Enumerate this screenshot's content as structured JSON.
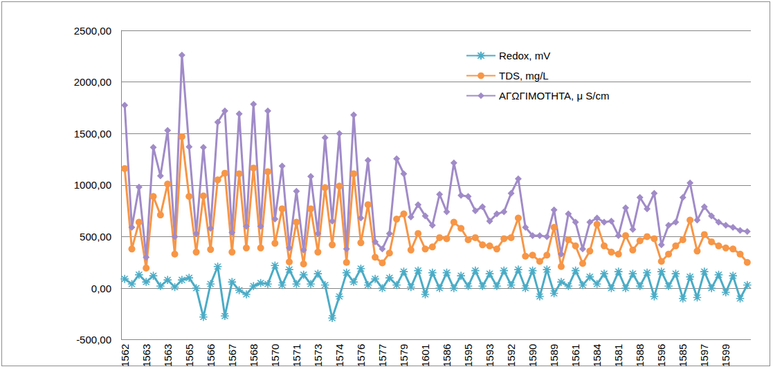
{
  "chart_data": {
    "type": "line",
    "categories": [
      "1562",
      null,
      null,
      "1563",
      null,
      null,
      "1563",
      null,
      null,
      "1565",
      null,
      null,
      "1566",
      null,
      null,
      "1567",
      null,
      null,
      "1568",
      null,
      null,
      "1570",
      null,
      null,
      "1571",
      null,
      null,
      "1573",
      null,
      null,
      "1574",
      null,
      null,
      "1576",
      null,
      null,
      "1577",
      null,
      null,
      "1579",
      null,
      null,
      "1601",
      null,
      null,
      "1586",
      null,
      null,
      "1595",
      null,
      null,
      "1593",
      null,
      null,
      "1592",
      null,
      null,
      "1590",
      null,
      null,
      "1589",
      null,
      null,
      "1561",
      null,
      null,
      "1584",
      null,
      null,
      "1581",
      null,
      null,
      "1588",
      null,
      null,
      "1596",
      null,
      null,
      "1585",
      null,
      null,
      "1597",
      null,
      null,
      "1599",
      null,
      null,
      null
    ],
    "series": [
      {
        "name": "Redox, mV",
        "color": "#4bacc6",
        "marker": "asterisk",
        "values": [
          90,
          40,
          130,
          60,
          120,
          20,
          80,
          10,
          80,
          100,
          0,
          -280,
          40,
          210,
          -270,
          60,
          -20,
          -60,
          20,
          50,
          40,
          220,
          30,
          180,
          40,
          130,
          40,
          140,
          30,
          -290,
          -80,
          150,
          60,
          190,
          30,
          90,
          0,
          100,
          30,
          160,
          10,
          170,
          -60,
          150,
          0,
          150,
          0,
          120,
          20,
          170,
          20,
          140,
          20,
          170,
          30,
          180,
          0,
          170,
          -80,
          180,
          -50,
          60,
          20,
          170,
          30,
          110,
          40,
          140,
          0,
          160,
          0,
          140,
          20,
          150,
          -80,
          160,
          20,
          140,
          -100,
          110,
          -90,
          160,
          0,
          130,
          -40,
          120,
          -100,
          30
        ]
      },
      {
        "name": "TDS, mg/L",
        "color": "#f79646",
        "marker": "circle",
        "values": [
          1160,
          380,
          640,
          195,
          890,
          710,
          1010,
          330,
          1470,
          890,
          350,
          895,
          375,
          1050,
          1115,
          350,
          1110,
          390,
          1165,
          390,
          1130,
          435,
          770,
          255,
          640,
          235,
          770,
          350,
          975,
          420,
          990,
          250,
          1110,
          440,
          810,
          300,
          245,
          340,
          670,
          720,
          370,
          530,
          380,
          400,
          490,
          480,
          640,
          580,
          470,
          490,
          420,
          410,
          380,
          480,
          490,
          680,
          310,
          320,
          260,
          320,
          590,
          210,
          470,
          410,
          240,
          360,
          620,
          410,
          350,
          330,
          510,
          370,
          460,
          500,
          480,
          260,
          330,
          410,
          470,
          660,
          360,
          520,
          450,
          410,
          390,
          380,
          330,
          250
        ]
      },
      {
        "name": "ΑΓΩΓΙΜΟΤΗΤΑ, μ S/cm",
        "color": "#a08bc8",
        "marker": "diamond",
        "values": [
          1775,
          590,
          980,
          300,
          1365,
          1090,
          1530,
          500,
          2260,
          1370,
          530,
          1365,
          580,
          1610,
          1720,
          540,
          1690,
          600,
          1785,
          600,
          1720,
          670,
          1185,
          390,
          940,
          370,
          1085,
          530,
          1460,
          650,
          1500,
          380,
          1680,
          680,
          1240,
          450,
          380,
          530,
          1255,
          1110,
          690,
          810,
          700,
          610,
          910,
          740,
          1215,
          900,
          890,
          750,
          790,
          650,
          720,
          740,
          920,
          1060,
          590,
          510,
          510,
          500,
          760,
          330,
          720,
          640,
          380,
          640,
          680,
          640,
          650,
          510,
          780,
          570,
          880,
          770,
          920,
          420,
          610,
          640,
          880,
          1020,
          660,
          790,
          700,
          640,
          610,
          590,
          560,
          550
        ]
      }
    ],
    "ylim": [
      -500,
      2500
    ],
    "yticks": [
      {
        "value": -500,
        "label": "-500,00"
      },
      {
        "value": 0,
        "label": "0,00"
      },
      {
        "value": 500,
        "label": "500,00"
      },
      {
        "value": 1000,
        "label": "1000,00"
      },
      {
        "value": 1500,
        "label": "1500,00"
      },
      {
        "value": 2000,
        "label": "2000,00"
      },
      {
        "value": 2500,
        "label": "2500,00"
      }
    ],
    "grid": true,
    "legend": "top-right"
  }
}
